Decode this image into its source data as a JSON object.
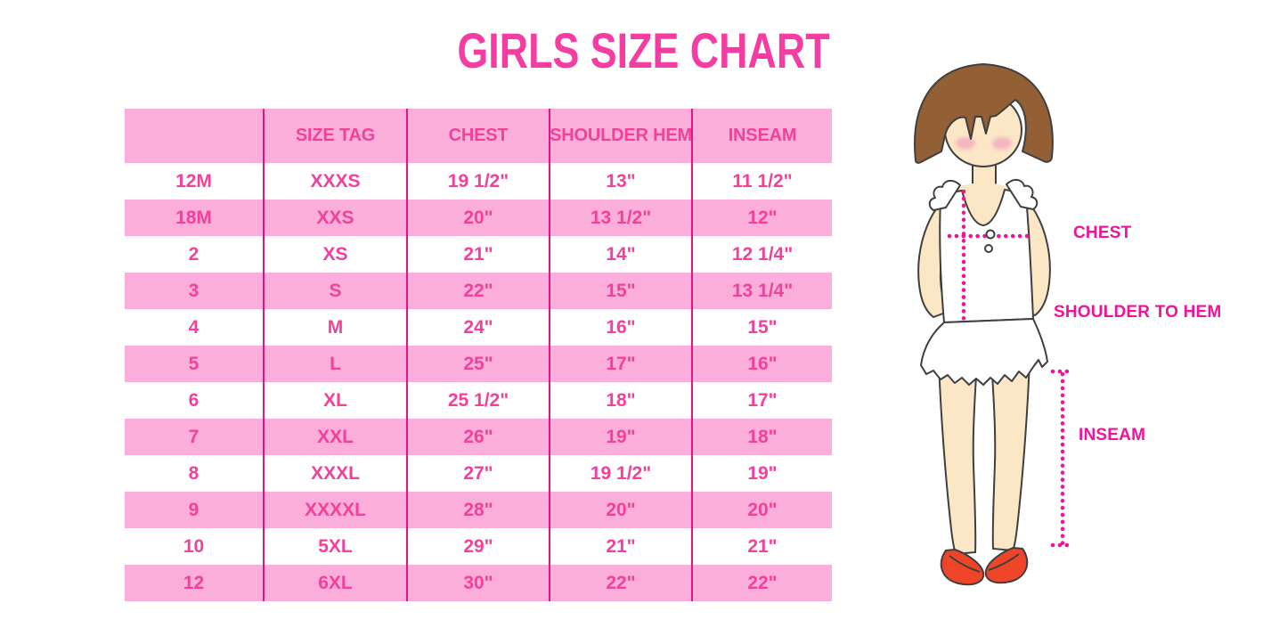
{
  "title": "GIRLS SIZE CHART",
  "colors": {
    "title_pink": "#F43DA2",
    "row_pink": "#FBAED9",
    "text_pink": "#F2419B",
    "line_magenta": "#E5128A",
    "label_magenta": "#F0129B",
    "dotted_line_pink": "#F0149B",
    "hair_brown": "#935F35",
    "skin": "#FBE7C5",
    "blush_pink": "#F3A9C0",
    "shoe_red": "#EE4528",
    "outline": "#3f3f3f"
  },
  "table": {
    "headers": [
      "",
      "SIZE TAG",
      "CHEST",
      "SHOULDER HEM",
      "INSEAM"
    ],
    "rows": [
      [
        "12M",
        "XXXS",
        "19 1/2\"",
        "13\"",
        "11 1/2\""
      ],
      [
        "18M",
        "XXS",
        "20\"",
        "13 1/2\"",
        "12\""
      ],
      [
        "2",
        "XS",
        "21\"",
        "14\"",
        "12 1/4\""
      ],
      [
        "3",
        "S",
        "22\"",
        "15\"",
        "13 1/4\""
      ],
      [
        "4",
        "M",
        "24\"",
        "16\"",
        "15\""
      ],
      [
        "5",
        "L",
        "25\"",
        "17\"",
        "16\""
      ],
      [
        "6",
        "XL",
        "25 1/2\"",
        "18\"",
        "17\""
      ],
      [
        "7",
        "XXL",
        "26\"",
        "19\"",
        "18\""
      ],
      [
        "8",
        "XXXL",
        "27\"",
        "19 1/2\"",
        "19\""
      ],
      [
        "9",
        "XXXXL",
        "28\"",
        "20\"",
        "20\""
      ],
      [
        "10",
        "5XL",
        "29\"",
        "21\"",
        "21\""
      ],
      [
        "12",
        "6XL",
        "30\"",
        "22\"",
        "22\""
      ]
    ]
  },
  "diagram": {
    "labels": {
      "chest": "CHEST",
      "shoulder_to_hem": "SHOULDER TO HEM",
      "inseam": "INSEAM"
    }
  }
}
